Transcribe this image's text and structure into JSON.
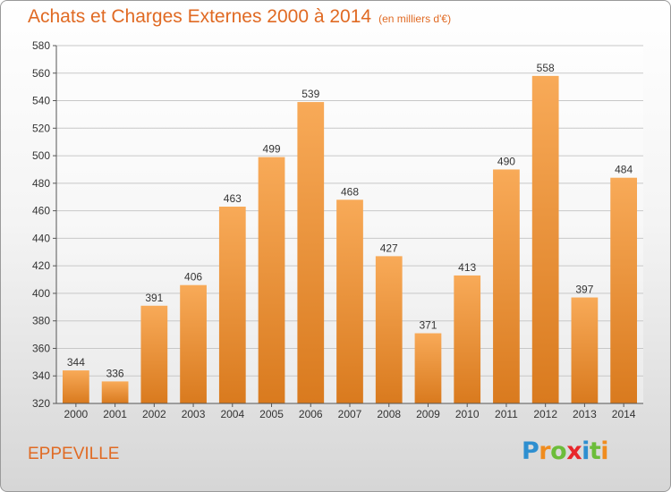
{
  "title": "Achats et Charges Externes 2000 à 2014",
  "subtitle": "(en milliers d'€)",
  "commune": "EPPEVILLE",
  "brand": {
    "text": "Proxiti",
    "letter_colors": [
      "#2e8fd0",
      "#f08c1e",
      "#6cbd3a",
      "#e8262b",
      "#2e8fd0",
      "#6cbd3a",
      "#f08c1e"
    ]
  },
  "colors": {
    "accent": "#e06a23",
    "bar_light": "#f8aa58",
    "bar_dark": "#d97a1e",
    "grid": "#c8c8c8"
  },
  "chart_data": {
    "type": "bar",
    "title": "Achats et Charges Externes 2000 à 2014",
    "subtitle": "(en milliers d'€)",
    "categories": [
      "2000",
      "2001",
      "2002",
      "2003",
      "2004",
      "2005",
      "2006",
      "2007",
      "2008",
      "2009",
      "2010",
      "2011",
      "2012",
      "2013",
      "2014"
    ],
    "values": [
      344,
      336,
      391,
      406,
      463,
      499,
      539,
      468,
      427,
      371,
      413,
      490,
      558,
      397,
      484
    ],
    "ylim": [
      320,
      580
    ],
    "yticks": [
      320,
      340,
      360,
      380,
      400,
      420,
      440,
      460,
      480,
      500,
      520,
      540,
      560,
      580
    ],
    "grid": true,
    "data_labels": true
  }
}
